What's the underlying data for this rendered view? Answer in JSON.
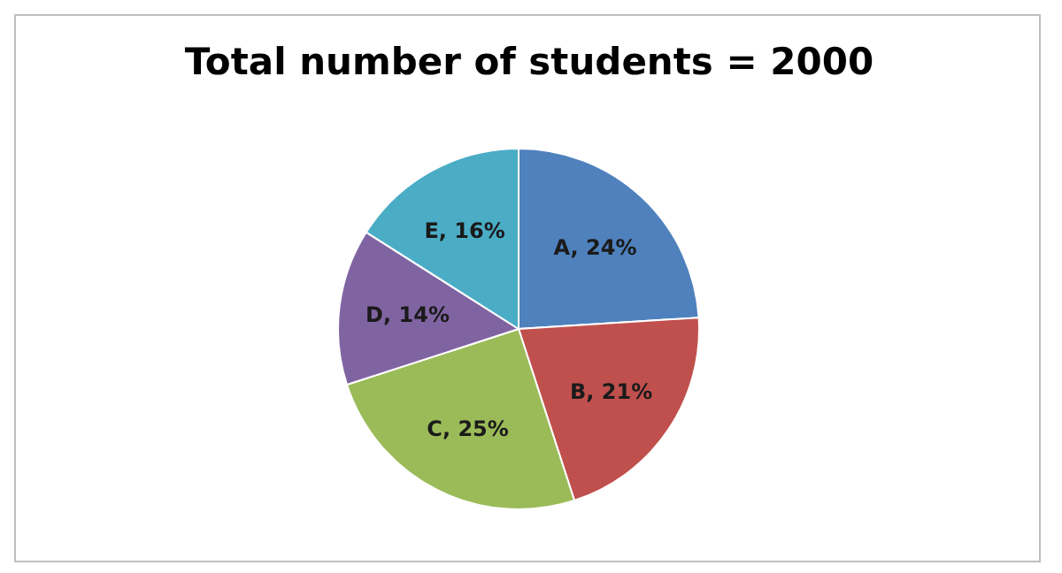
{
  "chart_data": {
    "type": "pie",
    "title": "Total number of students = 2000",
    "categories": [
      "A, 24%",
      "B, 21%",
      "C, 25%",
      "D, 14%",
      "E, 16%"
    ],
    "values": [
      24,
      21,
      25,
      14,
      16
    ],
    "colors": [
      "#4f81bd",
      "#c0504d",
      "#9bbb59",
      "#8064a2",
      "#4bacc6"
    ]
  }
}
